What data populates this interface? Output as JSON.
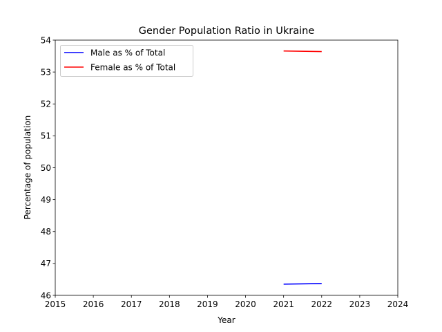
{
  "chart_data": {
    "type": "line",
    "title": "Gender Population Ratio in Ukraine",
    "xlabel": "Year",
    "ylabel": "Percentage of population",
    "xlim": [
      2015,
      2024
    ],
    "ylim": [
      46,
      54
    ],
    "xticks": [
      2015,
      2016,
      2017,
      2018,
      2019,
      2020,
      2021,
      2022,
      2023,
      2024
    ],
    "yticks": [
      46,
      47,
      48,
      49,
      50,
      51,
      52,
      53,
      54
    ],
    "grid": false,
    "legend_position": "top-left",
    "series": [
      {
        "name": "Male as % of Total",
        "color": "#0000ff",
        "x": [
          2021,
          2022
        ],
        "values": [
          46.35,
          46.37
        ]
      },
      {
        "name": "Female as % of Total",
        "color": "#ff0000",
        "x": [
          2021,
          2022
        ],
        "values": [
          53.66,
          53.64
        ]
      }
    ]
  }
}
